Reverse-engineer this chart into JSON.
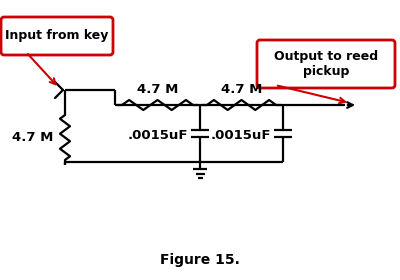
{
  "bg_color": "#ffffff",
  "line_color": "#000000",
  "red_color": "#cc0000",
  "label_input": "Input from key",
  "label_output": "Output to reed\npickup",
  "label_r1": "4.7 M",
  "label_r2": "4.7 M",
  "label_r3": "4.7 M",
  "label_c1": ".0015uF",
  "label_c2": ".0015uF",
  "figure_label": "Figure 15.",
  "figsize": [
    4.0,
    2.8
  ],
  "dpi": 100
}
